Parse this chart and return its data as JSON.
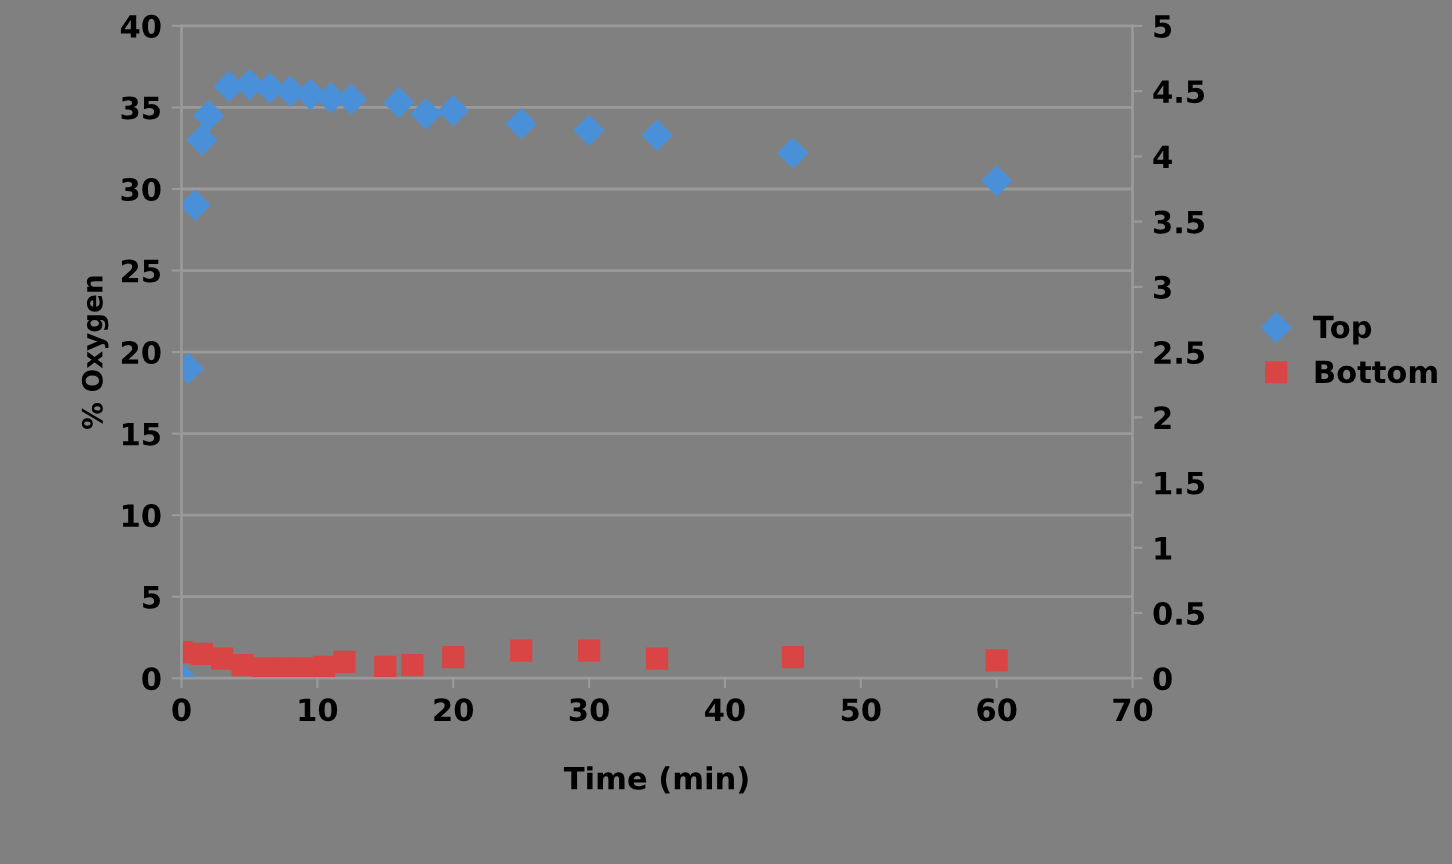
{
  "chart_data": {
    "type": "scatter",
    "xlabel": "Time (min)",
    "ylabel": "% Oxygen",
    "xlim": [
      0,
      70
    ],
    "xticks": [
      0,
      10,
      20,
      30,
      40,
      50,
      60,
      70
    ],
    "ylim": [
      0,
      40
    ],
    "yticks": [
      0,
      5,
      10,
      15,
      20,
      25,
      30,
      35,
      40
    ],
    "y2lim": [
      0,
      5
    ],
    "y2ticks": [
      0,
      0.5,
      1,
      1.5,
      2,
      2.5,
      3,
      3.5,
      4,
      4.5,
      5
    ],
    "grid": "y",
    "legend": "right",
    "series": [
      {
        "name": "Top",
        "color": "#4a90d9",
        "marker": "diamond",
        "x": [
          0,
          0.5,
          1,
          1.5,
          2,
          3.5,
          5,
          6.5,
          8,
          9.5,
          11,
          12.5,
          16,
          18,
          20,
          25,
          30,
          35,
          45,
          60
        ],
        "values": [
          0,
          19,
          29,
          33,
          34.5,
          36.3,
          36.4,
          36.2,
          36,
          35.8,
          35.6,
          35.5,
          35.3,
          34.6,
          34.8,
          34,
          33.6,
          33.3,
          32.2,
          30.5
        ]
      },
      {
        "name": "Bottom",
        "color": "#d94545",
        "marker": "square",
        "x": [
          0,
          1.5,
          3,
          4.5,
          6,
          7.5,
          9,
          10.5,
          12,
          15,
          17,
          20,
          25,
          30,
          35,
          45,
          60
        ],
        "values": [
          1.6,
          1.5,
          1.2,
          0.8,
          0.6,
          0.6,
          0.6,
          0.7,
          1.0,
          0.7,
          0.8,
          1.3,
          1.7,
          1.7,
          1.2,
          1.3,
          1.1
        ]
      }
    ]
  }
}
